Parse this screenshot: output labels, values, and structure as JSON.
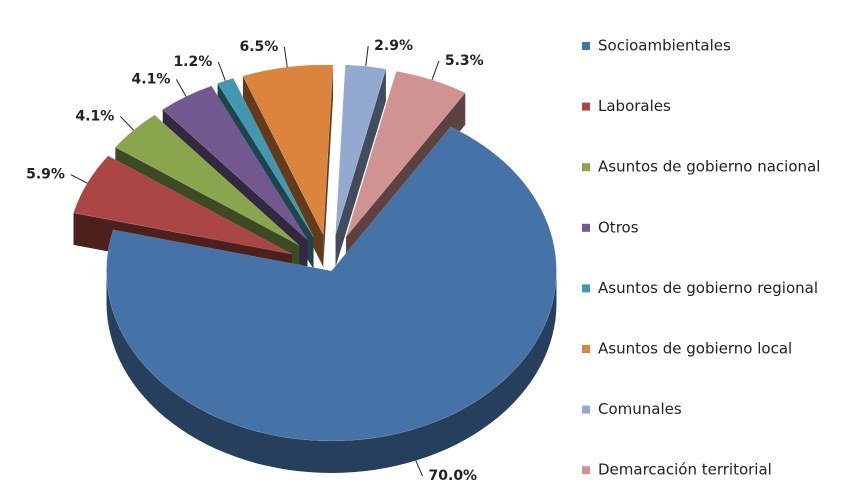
{
  "chart_data": {
    "type": "pie",
    "categories": [
      "Socioambientales",
      "Laborales",
      "Asuntos de gobierno nacional",
      "Otros",
      "Asuntos de gobierno regional",
      "Asuntos de gobierno local",
      "Comunales",
      "Demarcación territorial"
    ],
    "values": [
      70.0,
      5.9,
      4.1,
      4.1,
      1.2,
      6.5,
      2.9,
      5.3
    ],
    "value_labels": [
      "70.0%",
      "5.9%",
      "4.1%",
      "4.1%",
      "1.2%",
      "6.5%",
      "2.9%",
      "5.3%"
    ],
    "colors": [
      "#4572a7",
      "#aa4643",
      "#89a54e",
      "#71588f",
      "#4198af",
      "#db843d",
      "#93a9cf",
      "#d19392"
    ],
    "legend": "right"
  }
}
